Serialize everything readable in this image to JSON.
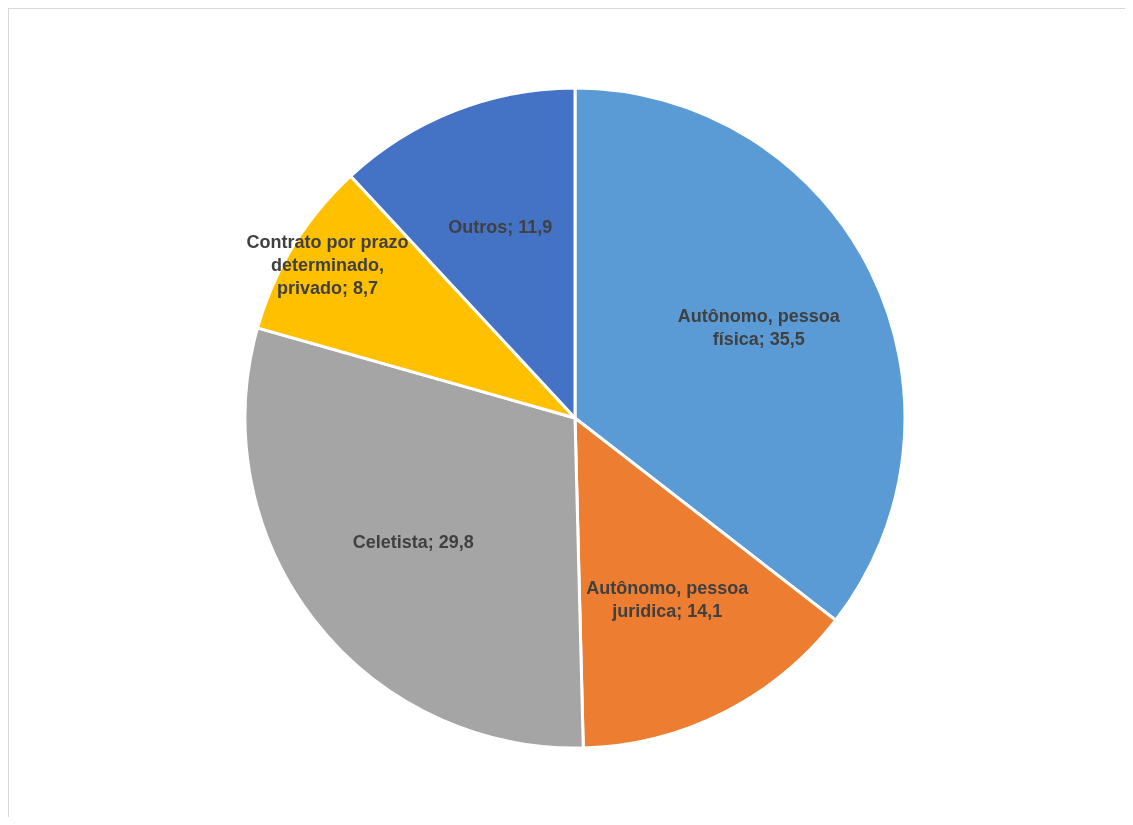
{
  "chart_data": {
    "type": "pie",
    "categories": [
      "Autônomo, pessoa física",
      "Autônomo, pessoa juridica",
      "Celetista",
      "Contrato por prazo determinado, privado",
      "Outros"
    ],
    "values": [
      35.5,
      14.1,
      29.8,
      8.7,
      11.9
    ],
    "value_labels": [
      "35,5",
      "14,1",
      "29,8",
      "8,7",
      "11,9"
    ],
    "colors": [
      "#5b9bd5",
      "#ed7d31",
      "#a5a5a5",
      "#ffc000",
      "#4472c4"
    ]
  }
}
